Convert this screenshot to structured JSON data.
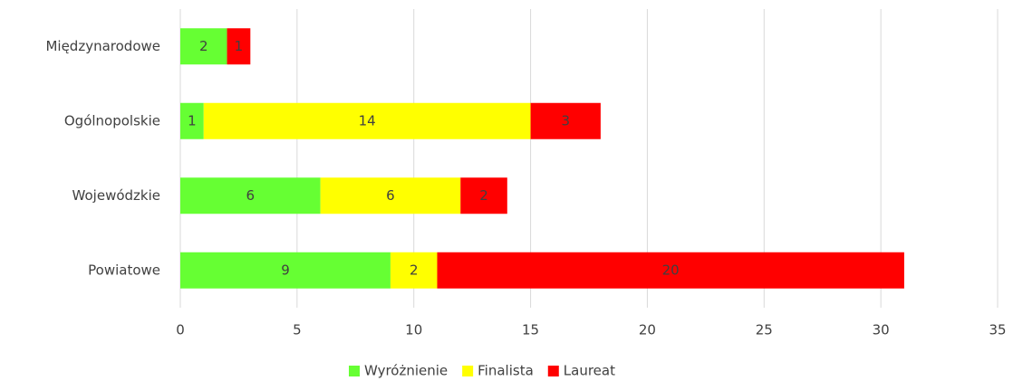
{
  "chart_data": {
    "type": "stacked_bar_horizontal",
    "categories": [
      "Międzynarodowe",
      "Ogólnopolskie",
      "Wojewódzkie",
      "Powiatowe"
    ],
    "series": [
      {
        "name": "Wyróżnienie",
        "color": "#66ff33",
        "values": [
          2,
          1,
          6,
          9
        ]
      },
      {
        "name": "Finalista",
        "color": "#ffff00",
        "values": [
          null,
          14,
          6,
          2
        ]
      },
      {
        "name": "Laureat",
        "color": "#ff0000",
        "values": [
          1,
          3,
          2,
          20
        ]
      }
    ],
    "xlim": [
      0,
      35
    ],
    "xticks": [
      0,
      5,
      10,
      15,
      20,
      25,
      30,
      35
    ],
    "grid": true,
    "legend": "bottom"
  }
}
